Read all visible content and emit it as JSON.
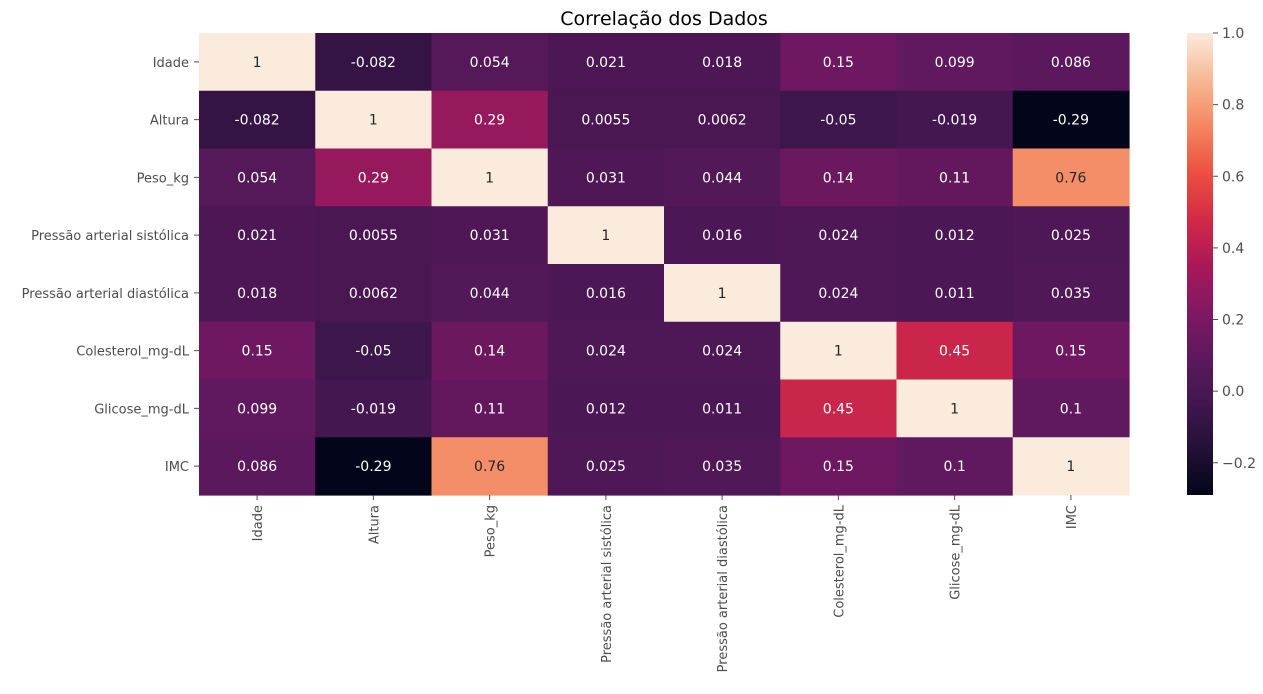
{
  "chart_data": {
    "type": "heatmap",
    "title": "Correlação dos Dados",
    "xlabels": [
      "Idade",
      "Altura",
      "Peso_kg",
      "Pressão arterial sistólica",
      "Pressão arterial diastólica",
      "Colesterol_mg-dL",
      "Glicose_mg-dL",
      "IMC"
    ],
    "ylabels": [
      "Idade",
      "Altura",
      "Peso_kg",
      "Pressão arterial sistólica",
      "Pressão arterial diastólica",
      "Colesterol_mg-dL",
      "Glicose_mg-dL",
      "IMC"
    ],
    "values": [
      [
        1,
        -0.082,
        0.054,
        0.021,
        0.018,
        0.15,
        0.099,
        0.086
      ],
      [
        -0.082,
        1,
        0.29,
        0.0055,
        0.0062,
        -0.05,
        -0.019,
        -0.29
      ],
      [
        0.054,
        0.29,
        1,
        0.031,
        0.044,
        0.14,
        0.11,
        0.76
      ],
      [
        0.021,
        0.0055,
        0.031,
        1,
        0.016,
        0.024,
        0.012,
        0.025
      ],
      [
        0.018,
        0.0062,
        0.044,
        0.016,
        1,
        0.024,
        0.011,
        0.035
      ],
      [
        0.15,
        -0.05,
        0.14,
        0.024,
        0.024,
        1,
        0.45,
        0.15
      ],
      [
        0.099,
        -0.019,
        0.11,
        0.012,
        0.011,
        0.45,
        1,
        0.1
      ],
      [
        0.086,
        -0.29,
        0.76,
        0.025,
        0.035,
        0.15,
        0.1,
        1
      ]
    ],
    "annotations": [
      [
        "1",
        "-0.082",
        "0.054",
        "0.021",
        "0.018",
        "0.15",
        "0.099",
        "0.086"
      ],
      [
        "-0.082",
        "1",
        "0.29",
        "0.0055",
        "0.0062",
        "-0.05",
        "-0.019",
        "-0.29"
      ],
      [
        "0.054",
        "0.29",
        "1",
        "0.031",
        "0.044",
        "0.14",
        "0.11",
        "0.76"
      ],
      [
        "0.021",
        "0.0055",
        "0.031",
        "1",
        "0.016",
        "0.024",
        "0.012",
        "0.025"
      ],
      [
        "0.018",
        "0.0062",
        "0.044",
        "0.016",
        "1",
        "0.024",
        "0.011",
        "0.035"
      ],
      [
        "0.15",
        "-0.05",
        "0.14",
        "0.024",
        "0.024",
        "1",
        "0.45",
        "0.15"
      ],
      [
        "0.099",
        "-0.019",
        "0.11",
        "0.012",
        "0.011",
        "0.45",
        "1",
        "0.1"
      ],
      [
        "0.086",
        "-0.29",
        "0.76",
        "0.025",
        "0.035",
        "0.15",
        "0.1",
        "1"
      ]
    ],
    "colorscale": "rocket",
    "vmin": -0.29,
    "vmax": 1,
    "colorbar_ticks": [
      "−0.2",
      "0.0",
      "0.2",
      "0.4",
      "0.6",
      "0.8",
      "1.0"
    ],
    "colorbar_tick_values": [
      -0.2,
      0.0,
      0.2,
      0.4,
      0.6,
      0.8,
      1.0
    ],
    "legend": "right"
  }
}
